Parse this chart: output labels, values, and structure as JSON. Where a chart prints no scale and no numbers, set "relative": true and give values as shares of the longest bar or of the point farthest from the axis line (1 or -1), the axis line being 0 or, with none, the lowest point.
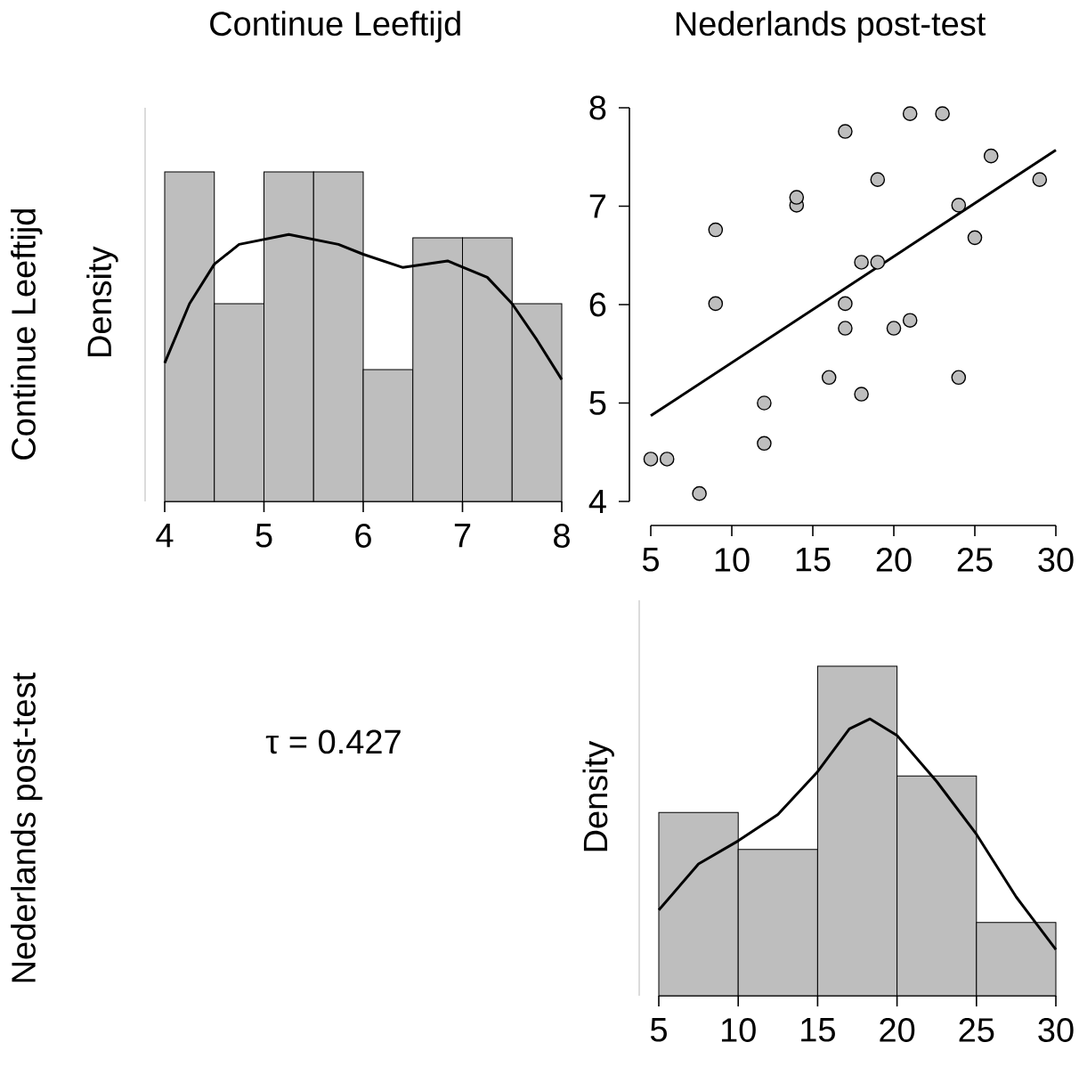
{
  "chart_data": [
    {
      "type": "histogram",
      "title": "Continue Leeftijd",
      "ylabel": "Density",
      "annotations": [
        "Continue Leeftijd"
      ],
      "relative": true,
      "bins": [
        4,
        4.5,
        5,
        5.5,
        6,
        6.5,
        7,
        7.5,
        8
      ],
      "values": [
        1,
        0.6,
        1,
        1,
        0.4,
        0.8,
        0.8,
        0.6
      ],
      "color": "#bebebe",
      "xlim": [
        4,
        8
      ],
      "xticks": [
        4,
        5,
        6,
        7,
        8
      ],
      "series": [
        {
          "type": "line",
          "color": "#000000",
          "x": [
            4,
            4.25,
            4.5,
            4.75,
            5.25,
            5.75,
            6.0,
            6.4,
            6.85,
            7.25,
            7.5,
            7.75,
            8
          ],
          "values": [
            0.42,
            0.6,
            0.72,
            0.78,
            0.81,
            0.78,
            0.75,
            0.71,
            0.73,
            0.68,
            0.6,
            0.49,
            0.37
          ]
        }
      ]
    },
    {
      "type": "scatter",
      "title": "Nederlands post-test",
      "xlim": [
        5,
        30
      ],
      "xticks": [
        5,
        10,
        15,
        20,
        25,
        30
      ],
      "ylim": [
        4,
        8
      ],
      "yticks": [
        4,
        5,
        6,
        7,
        8
      ],
      "series": [
        {
          "type": "scatter",
          "color": "#bebebe",
          "x": [
            5,
            6,
            8,
            9,
            9,
            12,
            12,
            14,
            14,
            16,
            17,
            17,
            17,
            18,
            18,
            19,
            19,
            20,
            21,
            21,
            23,
            24,
            24,
            25,
            26,
            29
          ],
          "values": [
            4.43,
            4.43,
            4.08,
            6.76,
            6.01,
            5.0,
            4.59,
            7.01,
            7.09,
            5.26,
            7.76,
            6.01,
            5.76,
            6.43,
            5.09,
            7.27,
            6.43,
            5.76,
            7.94,
            5.84,
            7.94,
            7.01,
            5.26,
            6.68,
            7.51,
            7.27
          ]
        },
        {
          "type": "line",
          "marker": "none",
          "color": "#000000",
          "x": [
            5,
            30
          ],
          "values": [
            4.87,
            7.57
          ]
        }
      ]
    },
    {
      "type": "other",
      "ylabel": "Nederlands post-test",
      "annotations": [
        "τ = 0.427"
      ]
    },
    {
      "type": "histogram",
      "ylabel": "Density",
      "relative": true,
      "bins": [
        5,
        10,
        15,
        20,
        25,
        30
      ],
      "values": [
        0.556,
        0.444,
        1,
        0.667,
        0.222
      ],
      "color": "#bebebe",
      "xlim": [
        5,
        30
      ],
      "xticks": [
        5,
        10,
        15,
        20,
        25,
        30
      ],
      "series": [
        {
          "type": "line",
          "color": "#000000",
          "x": [
            5,
            7.5,
            10,
            12.5,
            15,
            17,
            18.3,
            20,
            22.5,
            25,
            27.5,
            30
          ],
          "values": [
            0.26,
            0.4,
            0.47,
            0.55,
            0.68,
            0.81,
            0.84,
            0.79,
            0.65,
            0.49,
            0.3,
            0.14
          ]
        }
      ]
    }
  ]
}
